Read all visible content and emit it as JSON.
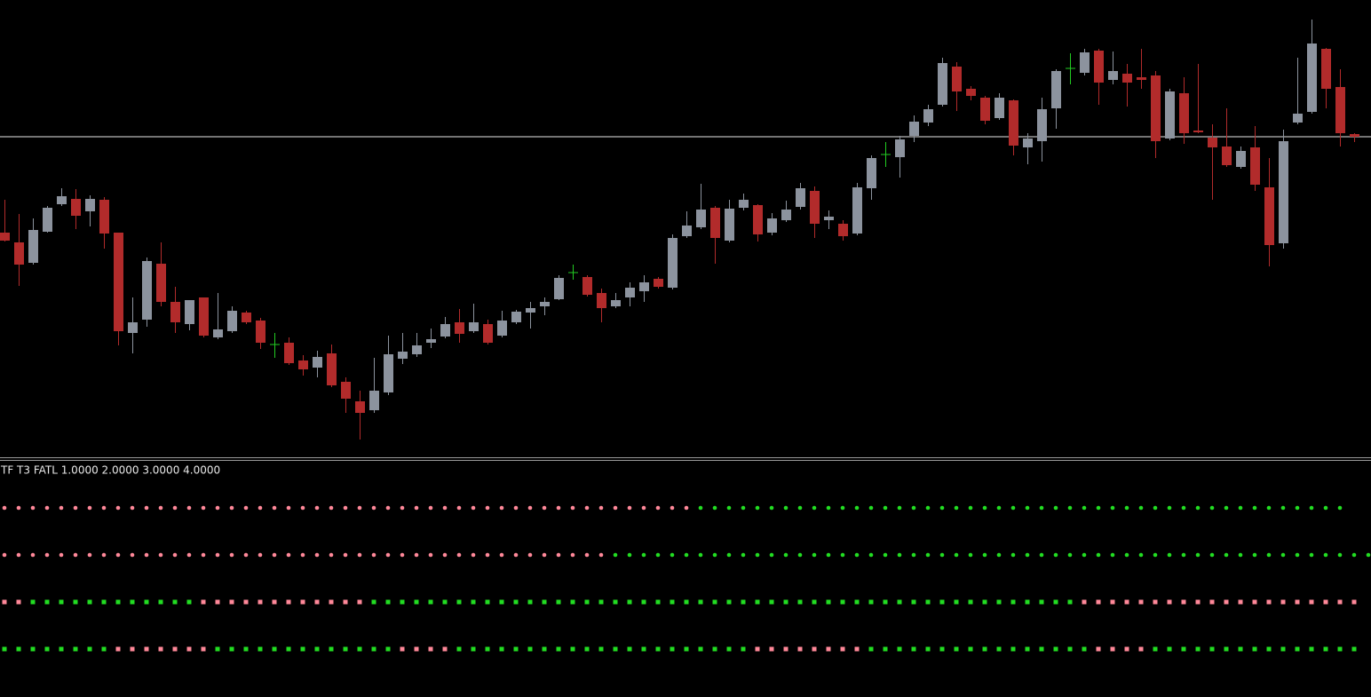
{
  "chart_data": [
    {
      "type": "candlestick",
      "ylim": [
        0,
        515
      ],
      "hline": 361,
      "hline_color": "#e8e8e8",
      "up_color": "#8c939e",
      "down_color": "#b22b2b",
      "doji_color": "#22cc22",
      "open": [
        253,
        242,
        219,
        254,
        285,
        291,
        277,
        290,
        253,
        140,
        155,
        218,
        175,
        150,
        180,
        135,
        142,
        163,
        154,
        127,
        129,
        109,
        101,
        117,
        85,
        63,
        53,
        73,
        111,
        116,
        129,
        136,
        152,
        142,
        150,
        137,
        152,
        163,
        170,
        178,
        208,
        203,
        185,
        170,
        180,
        187,
        201,
        191,
        249,
        259,
        281,
        244,
        281,
        284,
        253,
        267,
        282,
        300,
        267,
        263,
        252,
        303,
        341,
        338,
        362,
        377,
        397,
        440,
        415,
        405,
        382,
        402,
        349,
        356,
        393,
        438,
        433,
        458,
        425,
        432,
        428,
        430,
        359,
        410,
        368,
        360,
        350,
        327,
        349,
        304,
        241,
        377,
        389,
        460,
        417,
        364
      ],
      "high": [
        290,
        274,
        269,
        283,
        303,
        302,
        295,
        293,
        253,
        180,
        225,
        242,
        192,
        177,
        180,
        185,
        170,
        165,
        157,
        140,
        135,
        115,
        120,
        127,
        90,
        75,
        112,
        137,
        140,
        140,
        145,
        158,
        167,
        173,
        155,
        165,
        166,
        175,
        180,
        205,
        217,
        205,
        190,
        185,
        197,
        205,
        203,
        251,
        277,
        308,
        283,
        290,
        297,
        285,
        275,
        289,
        309,
        305,
        278,
        267,
        309,
        340,
        355,
        362,
        385,
        397,
        450,
        445,
        418,
        407,
        410,
        403,
        365,
        405,
        437,
        455,
        460,
        460,
        457,
        443,
        460,
        435,
        415,
        428,
        443,
        375,
        393,
        350,
        373,
        337,
        369,
        450,
        493,
        461,
        437,
        365
      ],
      "low": [
        243,
        193,
        217,
        253,
        283,
        257,
        260,
        235,
        126,
        117,
        147,
        170,
        140,
        143,
        135,
        133,
        140,
        150,
        122,
        112,
        104,
        92,
        90,
        79,
        50,
        20,
        50,
        70,
        105,
        113,
        123,
        134,
        129,
        140,
        127,
        135,
        150,
        145,
        160,
        177,
        200,
        181,
        152,
        168,
        170,
        175,
        190,
        189,
        247,
        257,
        218,
        242,
        278,
        243,
        250,
        265,
        279,
        247,
        257,
        244,
        250,
        290,
        327,
        315,
        355,
        373,
        395,
        390,
        402,
        375,
        380,
        340,
        330,
        333,
        370,
        420,
        430,
        397,
        420,
        395,
        415,
        337,
        357,
        353,
        365,
        290,
        327,
        325,
        300,
        215,
        235,
        375,
        387,
        393,
        350,
        355
      ],
      "close": [
        244,
        217,
        256,
        281,
        294,
        272,
        291,
        252,
        142,
        152,
        221,
        175,
        152,
        177,
        137,
        144,
        165,
        152,
        129,
        127,
        106,
        99,
        113,
        81,
        66,
        50,
        75,
        116,
        119,
        126,
        133,
        150,
        139,
        152,
        129,
        154,
        164,
        168,
        175,
        202,
        208,
        183,
        168,
        177,
        191,
        197,
        192,
        247,
        261,
        279,
        247,
        280,
        290,
        251,
        269,
        279,
        303,
        263,
        271,
        249,
        304,
        337,
        341,
        358,
        378,
        392,
        444,
        412,
        407,
        379,
        405,
        351,
        359,
        392,
        435,
        438,
        456,
        422,
        435,
        422,
        425,
        356,
        412,
        365,
        366,
        349,
        329,
        345,
        307,
        239,
        356,
        387,
        466,
        415,
        365,
        361
      ]
    },
    {
      "type": "dots",
      "title": "TF T3 FATL 1.0000 2.0000 3.0000 4.0000",
      "ylim": [
        0,
        5
      ],
      "series": [
        {
          "level": 4,
          "marker": "circle",
          "colors": [
            "#f89",
            "#f89",
            "#f89",
            "#f89",
            "#f89",
            "#f89",
            "#f89",
            "#f89",
            "#f89",
            "#f89",
            "#f89",
            "#f89",
            "#f89",
            "#f89",
            "#f89",
            "#f89",
            "#f89",
            "#f89",
            "#f89",
            "#f89",
            "#f89",
            "#f89",
            "#f89",
            "#f89",
            "#f89",
            "#f89",
            "#f89",
            "#f89",
            "#f89",
            "#f89",
            "#f89",
            "#f89",
            "#f89",
            "#f89",
            "#f89",
            "#f89",
            "#f89",
            "#f89",
            "#f89",
            "#f89",
            "#f89",
            "#f89",
            "#f89",
            "#f89",
            "#f89",
            "#f89",
            "#f89",
            "#f89",
            "#f89",
            "#2d2",
            "#2d2",
            "#2d2",
            "#2d2",
            "#2d2",
            "#2d2",
            "#2d2",
            "#2d2",
            "#2d2",
            "#2d2",
            "#2d2",
            "#2d2",
            "#2d2",
            "#2d2",
            "#2d2",
            "#2d2",
            "#2d2",
            "#2d2",
            "#2d2",
            "#2d2",
            "#2d2",
            "#2d2",
            "#2d2",
            "#2d2",
            "#2d2",
            "#2d2",
            "#2d2",
            "#2d2",
            "#2d2",
            "#2d2",
            "#2d2",
            "#2d2",
            "#2d2",
            "#2d2",
            "#2d2",
            "#2d2",
            "#2d2",
            "#2d2",
            "#2d2",
            "#2d2",
            "#2d2",
            "#2d2",
            "#2d2",
            "#2d2",
            "#2d2",
            "#2d2"
          ]
        },
        {
          "level": 3,
          "marker": "circle",
          "colors": [
            "#f89",
            "#f89",
            "#f89",
            "#f89",
            "#f89",
            "#f89",
            "#f89",
            "#f89",
            "#f89",
            "#f89",
            "#f89",
            "#f89",
            "#f89",
            "#f89",
            "#f89",
            "#f89",
            "#f89",
            "#f89",
            "#f89",
            "#f89",
            "#f89",
            "#f89",
            "#f89",
            "#f89",
            "#f89",
            "#f89",
            "#f89",
            "#f89",
            "#f89",
            "#f89",
            "#f89",
            "#f89",
            "#f89",
            "#f89",
            "#f89",
            "#f89",
            "#f89",
            "#f89",
            "#f89",
            "#f89",
            "#f89",
            "#f89",
            "#f89",
            "#2d2",
            "#2d2",
            "#2d2",
            "#2d2",
            "#2d2",
            "#2d2",
            "#2d2",
            "#2d2",
            "#2d2",
            "#2d2",
            "#2d2",
            "#2d2",
            "#2d2",
            "#2d2",
            "#2d2",
            "#2d2",
            "#2d2",
            "#2d2",
            "#2d2",
            "#2d2",
            "#2d2",
            "#2d2",
            "#2d2",
            "#2d2",
            "#2d2",
            "#2d2",
            "#2d2",
            "#2d2",
            "#2d2",
            "#2d2",
            "#2d2",
            "#2d2",
            "#2d2",
            "#2d2",
            "#2d2",
            "#2d2",
            "#2d2",
            "#2d2",
            "#2d2",
            "#2d2",
            "#2d2",
            "#2d2",
            "#2d2",
            "#2d2",
            "#2d2",
            "#2d2",
            "#2d2",
            "#2d2",
            "#2d2",
            "#2d2",
            "#2d2",
            "#2d2",
            "#2d2",
            "#2d2"
          ]
        },
        {
          "level": 2,
          "marker": "square",
          "colors": [
            "#f89",
            "#f89",
            "#2d2",
            "#2d2",
            "#2d2",
            "#2d2",
            "#2d2",
            "#2d2",
            "#2d2",
            "#2d2",
            "#2d2",
            "#2d2",
            "#2d2",
            "#2d2",
            "#f89",
            "#f89",
            "#f89",
            "#f89",
            "#f89",
            "#f89",
            "#f89",
            "#f89",
            "#f89",
            "#f89",
            "#f89",
            "#f89",
            "#2d2",
            "#2d2",
            "#2d2",
            "#2d2",
            "#2d2",
            "#2d2",
            "#2d2",
            "#2d2",
            "#2d2",
            "#2d2",
            "#2d2",
            "#2d2",
            "#2d2",
            "#2d2",
            "#2d2",
            "#2d2",
            "#2d2",
            "#2d2",
            "#2d2",
            "#2d2",
            "#2d2",
            "#2d2",
            "#2d2",
            "#2d2",
            "#2d2",
            "#2d2",
            "#2d2",
            "#2d2",
            "#2d2",
            "#2d2",
            "#2d2",
            "#2d2",
            "#2d2",
            "#2d2",
            "#2d2",
            "#2d2",
            "#2d2",
            "#2d2",
            "#2d2",
            "#2d2",
            "#2d2",
            "#2d2",
            "#2d2",
            "#2d2",
            "#2d2",
            "#2d2",
            "#2d2",
            "#2d2",
            "#2d2",
            "#2d2",
            "#f89",
            "#f89",
            "#f89",
            "#f89",
            "#f89",
            "#f89",
            "#f89",
            "#f89",
            "#f89",
            "#f89",
            "#f89",
            "#f89",
            "#f89",
            "#f89",
            "#f89",
            "#f89",
            "#f89",
            "#f89",
            "#f89",
            "#f89"
          ]
        },
        {
          "level": 1,
          "marker": "square",
          "colors": [
            "#2d2",
            "#2d2",
            "#2d2",
            "#2d2",
            "#2d2",
            "#2d2",
            "#2d2",
            "#2d2",
            "#f89",
            "#f89",
            "#f89",
            "#f89",
            "#f89",
            "#f89",
            "#f89",
            "#2d2",
            "#2d2",
            "#2d2",
            "#2d2",
            "#2d2",
            "#2d2",
            "#2d2",
            "#2d2",
            "#2d2",
            "#2d2",
            "#2d2",
            "#2d2",
            "#2d2",
            "#f89",
            "#f89",
            "#f89",
            "#f89",
            "#2d2",
            "#2d2",
            "#2d2",
            "#2d2",
            "#2d2",
            "#2d2",
            "#2d2",
            "#2d2",
            "#2d2",
            "#2d2",
            "#2d2",
            "#2d2",
            "#2d2",
            "#2d2",
            "#2d2",
            "#2d2",
            "#2d2",
            "#2d2",
            "#2d2",
            "#2d2",
            "#2d2",
            "#f89",
            "#f89",
            "#f89",
            "#f89",
            "#f89",
            "#f89",
            "#f89",
            "#f89",
            "#2d2",
            "#2d2",
            "#2d2",
            "#2d2",
            "#2d2",
            "#2d2",
            "#2d2",
            "#2d2",
            "#2d2",
            "#2d2",
            "#2d2",
            "#2d2",
            "#2d2",
            "#2d2",
            "#2d2",
            "#2d2",
            "#f89",
            "#f89",
            "#f89",
            "#f89",
            "#2d2",
            "#2d2",
            "#2d2",
            "#2d2",
            "#2d2",
            "#2d2",
            "#2d2",
            "#2d2",
            "#2d2",
            "#2d2",
            "#2d2",
            "#2d2",
            "#2d2",
            "#2d2",
            "#2d2"
          ]
        }
      ]
    }
  ]
}
